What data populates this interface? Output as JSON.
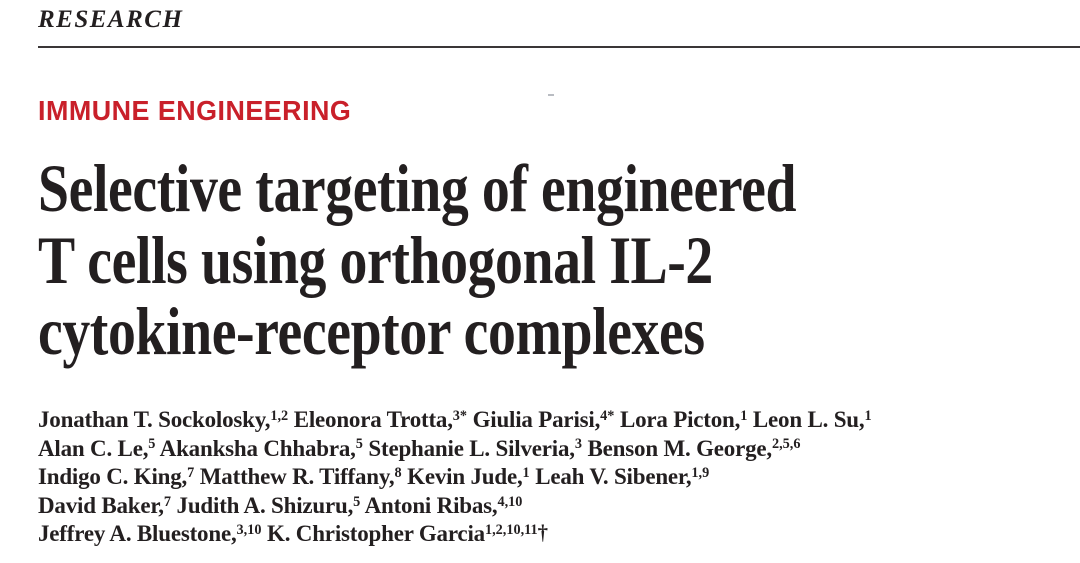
{
  "masthead": {
    "section": "RESEARCH"
  },
  "article": {
    "kicker": "IMMUNE ENGINEERING",
    "title_lines": [
      "Selective targeting of engineered",
      "T cells using orthogonal IL-2",
      "cytokine-receptor complexes"
    ],
    "author_lines": [
      [
        {
          "t": "Jonathan T. Sockolosky,",
          "s": "1,2"
        },
        {
          "t": "Eleonora Trotta,",
          "s": "3*"
        },
        {
          "t": "Giulia Parisi,",
          "s": "4*"
        },
        {
          "t": "Lora Picton,",
          "s": "1"
        },
        {
          "t": "Leon L. Su,",
          "s": "1"
        }
      ],
      [
        {
          "t": "Alan C. Le,",
          "s": "5"
        },
        {
          "t": "Akanksha Chhabra,",
          "s": "5"
        },
        {
          "t": "Stephanie L. Silveria,",
          "s": "3"
        },
        {
          "t": "Benson M. George,",
          "s": "2,5,6"
        }
      ],
      [
        {
          "t": "Indigo C. King,",
          "s": "7"
        },
        {
          "t": "Matthew R. Tiffany,",
          "s": "8"
        },
        {
          "t": "Kevin Jude,",
          "s": "1"
        },
        {
          "t": "Leah V. Sibener,",
          "s": "1,9"
        }
      ],
      [
        {
          "t": "David Baker,",
          "s": "7"
        },
        {
          "t": "Judith A. Shizuru,",
          "s": "5"
        },
        {
          "t": "Antoni Ribas,",
          "s": "4,10"
        }
      ],
      [
        {
          "t": "Jeffrey A. Bluestone,",
          "s": "3,10"
        },
        {
          "t": "K. Christopher Garcia",
          "s": "1,2,10,11",
          "tail": "†"
        }
      ]
    ]
  },
  "colors": {
    "kicker_red": "#c9202a",
    "text_black": "#231f20",
    "rule_gray": "#3a3637"
  }
}
